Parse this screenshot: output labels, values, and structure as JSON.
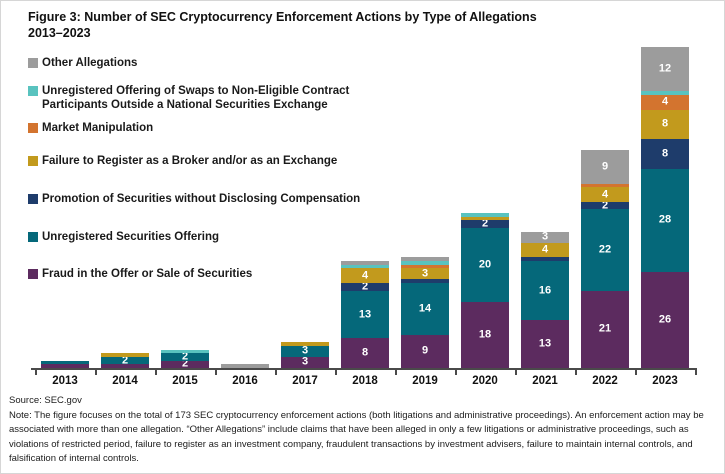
{
  "figure": {
    "title_line1": "Figure 3: Number of SEC Cryptocurrency Enforcement Actions by Type of Allegations",
    "title_line2": "2013–2023"
  },
  "legend": [
    {
      "label": "Other Allegations",
      "color": "#9c9c9c"
    },
    {
      "label": "Unregistered Offering of Swaps to Non-Eligible Contract Participants Outside a National Securities Exchange",
      "color": "#59c3bf"
    },
    {
      "label": "Market Manipulation",
      "color": "#d3742f"
    },
    {
      "label": "Failure to Register as a Broker and/or as an Exchange",
      "color": "#c29a1d"
    },
    {
      "label": "Promotion of Securities without Disclosing Compensation",
      "color": "#1e3c6b"
    },
    {
      "label": "Unregistered Securities Offering",
      "color": "#05687a"
    },
    {
      "label": "Fraud in the Offer or Sale of Securities",
      "color": "#5c2b5f"
    }
  ],
  "chart_data": {
    "type": "bar",
    "stacked": true,
    "title": "Figure 3: Number of SEC Cryptocurrency Enforcement Actions by Type of Allegations 2013–2023",
    "categories": [
      "2013",
      "2014",
      "2015",
      "2016",
      "2017",
      "2018",
      "2019",
      "2020",
      "2021",
      "2022",
      "2023"
    ],
    "series": [
      {
        "name": "Fraud in the Offer or Sale of Securities",
        "color": "#5c2b5f",
        "values": [
          1,
          1,
          2,
          0,
          3,
          8,
          9,
          18,
          13,
          21,
          26
        ]
      },
      {
        "name": "Unregistered Securities Offering",
        "color": "#05687a",
        "values": [
          1,
          2,
          2,
          0,
          3,
          13,
          14,
          20,
          16,
          22,
          28
        ]
      },
      {
        "name": "Promotion of Securities without Disclosing Compensation",
        "color": "#1e3c6b",
        "values": [
          0,
          0,
          0,
          0,
          0,
          2,
          1,
          2,
          1,
          2,
          8
        ]
      },
      {
        "name": "Failure to Register as a Broker and/or as an Exchange",
        "color": "#c29a1d",
        "values": [
          0,
          1,
          0,
          0,
          1,
          4,
          3,
          1,
          4,
          4,
          8
        ]
      },
      {
        "name": "Market Manipulation",
        "color": "#d3742f",
        "values": [
          0,
          0,
          0,
          0,
          0,
          0,
          1,
          0,
          0,
          1,
          4
        ]
      },
      {
        "name": "Unregistered Offering of Swaps to Non-Eligible Contract Participants Outside a National Securities Exchange",
        "color": "#59c3bf",
        "values": [
          0,
          0,
          1,
          0,
          0,
          1,
          1,
          1,
          0,
          0,
          1
        ]
      },
      {
        "name": "Other Allegations",
        "color": "#9c9c9c",
        "values": [
          0,
          0,
          0,
          1,
          0,
          1,
          1,
          0,
          3,
          9,
          12
        ]
      }
    ],
    "totals": [
      2,
      4,
      5,
      1,
      7,
      29,
      30,
      42,
      37,
      59,
      87
    ],
    "value_label_min": 2,
    "xlabel": "",
    "ylabel": "",
    "legend_position": "upper-left",
    "grid": false
  },
  "footer": {
    "source": "Source: SEC.gov",
    "note": "Note: The figure focuses on the total of 173 SEC cryptocurrency enforcement actions (both litigations and administrative proceedings). An enforcement action may be associated with more than one allegation. “Other Allegations” include claims that have been alleged in only a few litigations or administrative proceedings, such as violations of restricted period, failure to register as an investment company, fraudulent transactions by investment advisers, failure to maintain internal controls, and falsification of internal controls."
  }
}
